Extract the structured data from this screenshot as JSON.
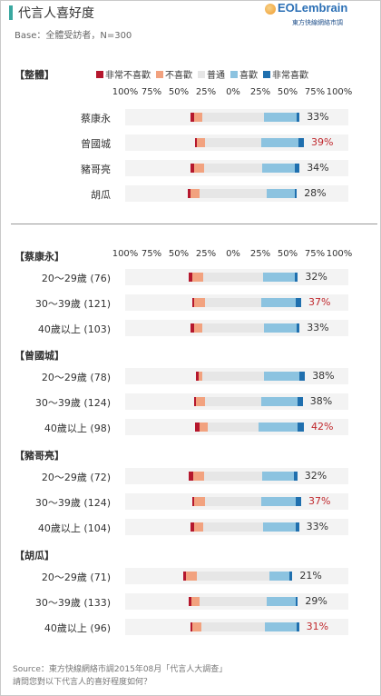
{
  "header": {
    "title": "代言人喜好度",
    "subtitle": "Base：全體受訪者，N=300",
    "logo_main": "EOLembrain",
    "logo_sub": "東方快線網絡市調"
  },
  "legend": [
    {
      "label": "非常不喜歡",
      "color": "#b5172d"
    },
    {
      "label": "不喜歡",
      "color": "#f2a27f"
    },
    {
      "label": "普通",
      "color": "#e6e6e6"
    },
    {
      "label": "喜歡",
      "color": "#8cc3e0"
    },
    {
      "label": "非常喜歡",
      "color": "#1f6fae"
    }
  ],
  "axis_ticks": [
    "100%",
    "75%",
    "50%",
    "25%",
    "0%",
    "25%",
    "50%",
    "75%",
    "100%"
  ],
  "chart_data": {
    "type": "bar",
    "title": "代言人喜好度",
    "subtitle": "Base：全體受訪者，N=300",
    "series_names": [
      "非常不喜歡",
      "不喜歡",
      "普通",
      "喜歡",
      "非常喜歡"
    ],
    "sections": [
      {
        "label": "【整體】",
        "rows": [
          {
            "label": "蔡康永",
            "dislike_strong": 3,
            "dislike": 8,
            "neutral": 56,
            "like": 30,
            "like_strong": 3,
            "favorable": "33%",
            "highlight": false
          },
          {
            "label": "曾國城",
            "dislike_strong": 2,
            "dislike": 7,
            "neutral": 52,
            "like": 34,
            "like_strong": 5,
            "favorable": "39%",
            "highlight": true
          },
          {
            "label": "豬哥亮",
            "dislike_strong": 3,
            "dislike": 9,
            "neutral": 54,
            "like": 30,
            "like_strong": 4,
            "favorable": "34%",
            "highlight": false
          },
          {
            "label": "胡瓜",
            "dislike_strong": 2,
            "dislike": 9,
            "neutral": 61,
            "like": 26,
            "like_strong": 2,
            "favorable": "28%",
            "highlight": false
          }
        ]
      },
      {
        "label": "【蔡康永】",
        "rows": [
          {
            "label": "20～29歲 (76)",
            "dislike_strong": 3,
            "dislike": 10,
            "neutral": 55,
            "like": 29,
            "like_strong": 3,
            "favorable": "32%",
            "highlight": false
          },
          {
            "label": "30～39歲 (121)",
            "dislike_strong": 2,
            "dislike": 10,
            "neutral": 51,
            "like": 32,
            "like_strong": 5,
            "favorable": "37%",
            "highlight": true
          },
          {
            "label": "40歲以上 (103)",
            "dislike_strong": 3,
            "dislike": 8,
            "neutral": 56,
            "like": 30,
            "like_strong": 3,
            "favorable": "33%",
            "highlight": false
          }
        ]
      },
      {
        "label": "【曾國城】",
        "rows": [
          {
            "label": "20～29歲 (78)",
            "dislike_strong": 2,
            "dislike": 4,
            "neutral": 56,
            "like": 33,
            "like_strong": 5,
            "favorable": "38%",
            "highlight": false
          },
          {
            "label": "30～39歲 (124)",
            "dislike_strong": 2,
            "dislike": 8,
            "neutral": 52,
            "like": 33,
            "like_strong": 5,
            "favorable": "38%",
            "highlight": false
          },
          {
            "label": "40歲以上 (98)",
            "dislike_strong": 4,
            "dislike": 8,
            "neutral": 46,
            "like": 36,
            "like_strong": 6,
            "favorable": "42%",
            "highlight": true
          }
        ]
      },
      {
        "label": "【豬哥亮】",
        "rows": [
          {
            "label": "20～29歲 (72)",
            "dislike_strong": 4,
            "dislike": 10,
            "neutral": 54,
            "like": 29,
            "like_strong": 3,
            "favorable": "32%",
            "highlight": false
          },
          {
            "label": "30～39歲 (124)",
            "dislike_strong": 2,
            "dislike": 10,
            "neutral": 51,
            "like": 32,
            "like_strong": 5,
            "favorable": "37%",
            "highlight": true
          },
          {
            "label": "40歲以上 (104)",
            "dislike_strong": 4,
            "dislike": 8,
            "neutral": 55,
            "like": 30,
            "like_strong": 3,
            "favorable": "33%",
            "highlight": false
          }
        ]
      },
      {
        "label": "【胡瓜】",
        "rows": [
          {
            "label": "20～29歲 (71)",
            "dislike_strong": 2,
            "dislike": 10,
            "neutral": 67,
            "like": 18,
            "like_strong": 3,
            "favorable": "21%",
            "highlight": false
          },
          {
            "label": "30～39歲 (133)",
            "dislike_strong": 2,
            "dislike": 8,
            "neutral": 61,
            "like": 27,
            "like_strong": 2,
            "favorable": "29%",
            "highlight": false
          },
          {
            "label": "40歲以上 (96)",
            "dislike_strong": 2,
            "dislike": 8,
            "neutral": 59,
            "like": 29,
            "like_strong": 2,
            "favorable": "31%",
            "highlight": true
          }
        ]
      }
    ]
  },
  "footer": {
    "source": "Source：東方快線網絡市調2015年08月「代言人大調查」",
    "question": "請問您對以下代言人的喜好程度如何？"
  }
}
